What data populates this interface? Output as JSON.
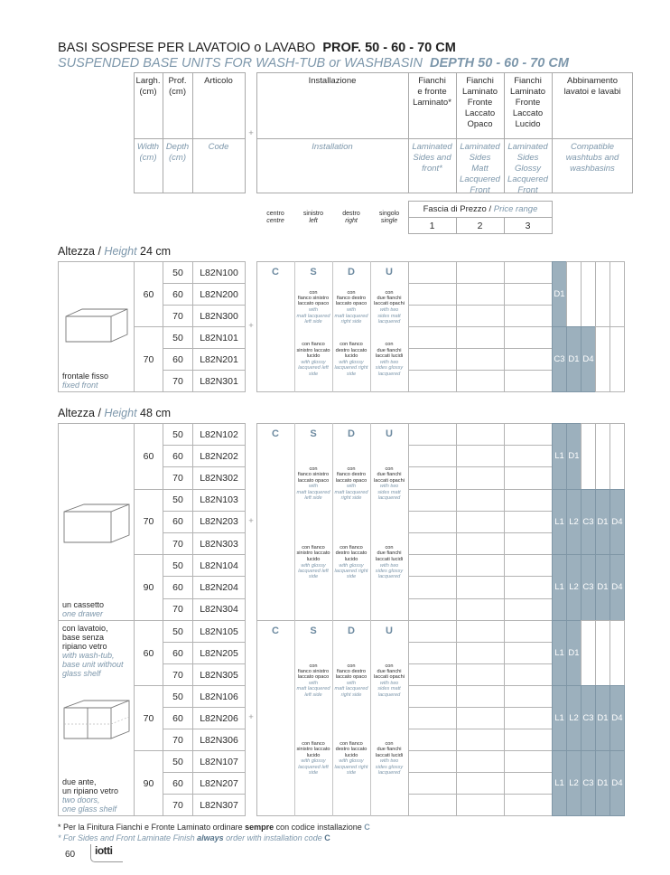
{
  "header": {
    "title_it": "BASI SOSPESE PER LAVATOIO o LAVABO",
    "title_it_bold": "PROF. 50 - 60 - 70 CM",
    "title_en": "SUSPENDED BASE UNITS FOR WASH-TUB or WASHBASIN",
    "title_en_bold": "DEPTH 50 - 60 - 70 CM"
  },
  "columns": {
    "width_it": "Largh.\n(cm)",
    "width_en": "Width\n(cm)",
    "depth_it": "Prof.\n(cm)",
    "depth_en": "Depth\n(cm)",
    "code_it": "Articolo",
    "code_en": "Code",
    "plus": "+",
    "install_it": "Installazione",
    "install_en": "Installation",
    "f1_it": "Fianchi\ne fronte\nLaminato*",
    "f1_en": "Laminated\nSides and\nfront*",
    "f2_it": "Fianchi\nLaminato\nFronte\nLaccato\nOpaco",
    "f2_en": "Laminated\nSides\nMatt\nLacquered\nFront",
    "f3_it": "Fianchi\nLaminato\nFronte\nLaccato\nLucido",
    "f3_en": "Laminated\nSides\nGlossy\nLacquered\nFront",
    "compat_it": "Abbinamento\nlavatoi e lavabi",
    "compat_en": "Compatible\nwashtubs and\nwashbasins"
  },
  "install_positions": [
    {
      "it": "centro",
      "en": "centre"
    },
    {
      "it": "sinistro",
      "en": "left"
    },
    {
      "it": "destro",
      "en": "right"
    },
    {
      "it": "singolo",
      "en": "single"
    }
  ],
  "price_range": {
    "label_it": "Fascia di Prezzo /",
    "label_en": "Price range",
    "values": [
      "1",
      "2",
      "3"
    ]
  },
  "install_letters": [
    "C",
    "S",
    "D",
    "U"
  ],
  "install_notes": {
    "matt": [
      {
        "it": "con\nfianco sinistro\nlaccato opaco",
        "en": "with\nmatt lacquered\nleft side"
      },
      {
        "it": "con\nfianco destro\nlaccato opaco",
        "en": "with\nmatt lacquered\nright side"
      },
      {
        "it": "con\ndue fianchi\nlaccati opachi",
        "en": "with two\nsides matt\nlacquered"
      }
    ],
    "glossy": [
      {
        "it": "con fianco\nsinistro laccato\nlucido",
        "en": "with glossy\nlacquered left\nside"
      },
      {
        "it": "con fianco\ndestro laccato\nlucido",
        "en": "with glossy\nlacquered right\nside"
      },
      {
        "it": "con\ndue fianchi\nlaccati lucidi",
        "en": "with two\nsides glossy\nlacquered"
      }
    ]
  },
  "sections": [
    {
      "title_it": "Altezza /",
      "title_en": "Height",
      "title_value": "24 cm",
      "desc_top_it": "",
      "desc_top_en": "",
      "desc_it": "frontale fisso",
      "desc_en": "fixed front",
      "illustration": "open-box-fixed-front",
      "show_letters": true,
      "groups": [
        {
          "width": "60",
          "compat": [
            "D1"
          ],
          "rows": [
            {
              "depth": "50",
              "code": "L82N100"
            },
            {
              "depth": "60",
              "code": "L82N200"
            },
            {
              "depth": "70",
              "code": "L82N300"
            }
          ]
        },
        {
          "width": "70",
          "compat": [
            "C3",
            "D1",
            "D4"
          ],
          "rows": [
            {
              "depth": "50",
              "code": "L82N101"
            },
            {
              "depth": "60",
              "code": "L82N201"
            },
            {
              "depth": "70",
              "code": "L82N301"
            }
          ]
        }
      ]
    },
    {
      "title_it": "Altezza /",
      "title_en": "Height",
      "title_value": "48 cm",
      "desc_top_it": "",
      "desc_top_en": "",
      "desc_it": "un cassetto",
      "desc_en": "one drawer",
      "illustration": "drawer-box",
      "show_letters": true,
      "groups": [
        {
          "width": "60",
          "compat": [
            "L1",
            "D1"
          ],
          "rows": [
            {
              "depth": "50",
              "code": "L82N102"
            },
            {
              "depth": "60",
              "code": "L82N202"
            },
            {
              "depth": "70",
              "code": "L82N302"
            }
          ]
        },
        {
          "width": "70",
          "compat": [
            "L1",
            "L2",
            "C3",
            "D1",
            "D4"
          ],
          "rows": [
            {
              "depth": "50",
              "code": "L82N103"
            },
            {
              "depth": "60",
              "code": "L82N203"
            },
            {
              "depth": "70",
              "code": "L82N303"
            }
          ]
        },
        {
          "width": "90",
          "compat": [
            "L1",
            "L2",
            "C3",
            "D1",
            "D4"
          ],
          "rows": [
            {
              "depth": "50",
              "code": "L82N104"
            },
            {
              "depth": "60",
              "code": "L82N204"
            },
            {
              "depth": "70",
              "code": "L82N304"
            }
          ]
        }
      ]
    },
    {
      "title_it": "",
      "title_en": "",
      "title_value": "",
      "desc_top_it": "con lavatoio,\nbase senza\nripiano vetro",
      "desc_top_en": "with wash-tub,\nbase unit without\nglass shelf",
      "desc_it": "due ante,\nun ripiano vetro",
      "desc_en": "two doors,\none glass shelf",
      "illustration": "two-door-box-glass-shelf",
      "show_letters": true,
      "groups": [
        {
          "width": "60",
          "compat": [
            "L1",
            "D1"
          ],
          "rows": [
            {
              "depth": "50",
              "code": "L82N105"
            },
            {
              "depth": "60",
              "code": "L82N205"
            },
            {
              "depth": "70",
              "code": "L82N305"
            }
          ]
        },
        {
          "width": "70",
          "compat": [
            "L1",
            "L2",
            "C3",
            "D1",
            "D4"
          ],
          "rows": [
            {
              "depth": "50",
              "code": "L82N106"
            },
            {
              "depth": "60",
              "code": "L82N206"
            },
            {
              "depth": "70",
              "code": "L82N306"
            }
          ]
        },
        {
          "width": "90",
          "compat": [
            "L1",
            "L2",
            "C3",
            "D1",
            "D4"
          ],
          "rows": [
            {
              "depth": "50",
              "code": "L82N107"
            },
            {
              "depth": "60",
              "code": "L82N207"
            },
            {
              "depth": "70",
              "code": "L82N307"
            }
          ]
        }
      ]
    }
  ],
  "footnote": {
    "it_pre": "* Per la Finitura Fianchi e Fronte Laminato ordinare",
    "it_bold": "sempre",
    "it_post": "con codice installazione",
    "it_code": "C",
    "en_pre": "* For Sides and Front Laminate Finish",
    "en_bold": "always",
    "en_post": "order with installation code",
    "en_code": "C"
  },
  "page_number": "60",
  "logo_text": "iotti",
  "colors": {
    "shade": "#9cb0bd",
    "accent_text": "#7d97ab"
  }
}
